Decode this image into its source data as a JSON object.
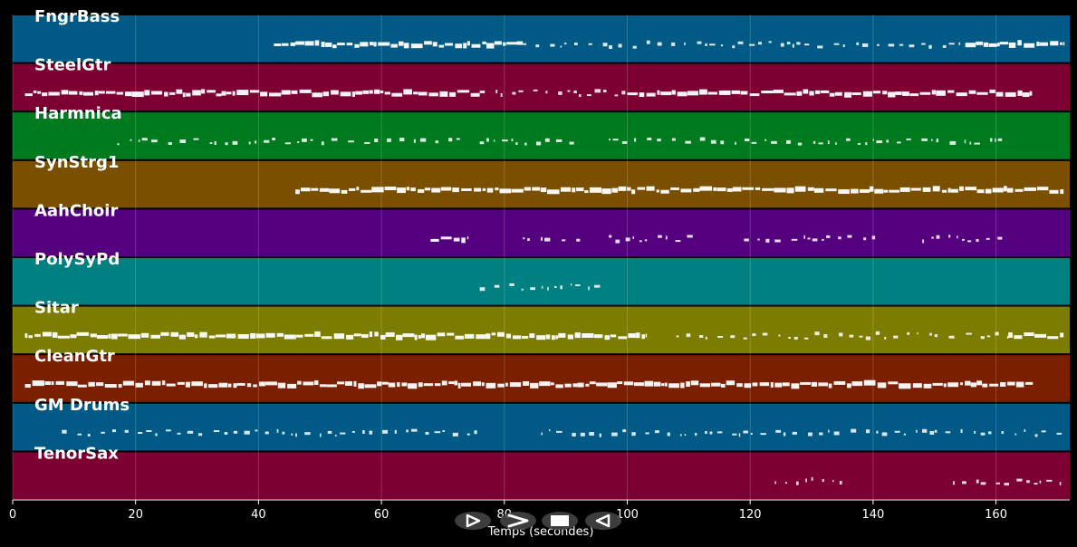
{
  "chart_data": {
    "type": "piano-roll",
    "xlabel": "Temps (secondes)",
    "xlim": [
      0,
      172
    ],
    "xticks": [
      0,
      20,
      40,
      60,
      80,
      100,
      120,
      140,
      160
    ],
    "grid": true,
    "tracks": [
      {
        "name": "FngrBass",
        "color": "#005a85",
        "segments": [
          [
            42.5,
            46,
            "dense"
          ],
          [
            46,
            83,
            "dense"
          ],
          [
            83,
            97,
            "sparse"
          ],
          [
            97,
            118,
            "sparse"
          ],
          [
            118,
            155,
            "sparse"
          ],
          [
            155,
            171,
            "dense"
          ]
        ]
      },
      {
        "name": "SteelGtr",
        "color": "#7d0033",
        "segments": [
          [
            2,
            76,
            "dense"
          ],
          [
            76,
            100,
            "sparse"
          ],
          [
            100,
            160,
            "dense"
          ],
          [
            160,
            166,
            "dense"
          ]
        ]
      },
      {
        "name": "Harmnica",
        "color": "#007a1e",
        "segments": [
          [
            17,
            74,
            "sparse"
          ],
          [
            76,
            92,
            "sparse"
          ],
          [
            97,
            161,
            "sparse"
          ]
        ]
      },
      {
        "name": "SynStrg1",
        "color": "#7a5000",
        "segments": [
          [
            46,
            171,
            "dense"
          ]
        ]
      },
      {
        "name": "AahChoir",
        "color": "#55007f",
        "segments": [
          [
            68,
            74,
            "dense"
          ],
          [
            83,
            93,
            "sparse"
          ],
          [
            97,
            111,
            "sparse"
          ],
          [
            119,
            141,
            "sparse"
          ],
          [
            148,
            161,
            "sparse"
          ]
        ]
      },
      {
        "name": "PolySyPd",
        "color": "#008080",
        "segments": [
          [
            76,
            96,
            "sparse"
          ]
        ]
      },
      {
        "name": "Sitar",
        "color": "#7c7c00",
        "segments": [
          [
            2,
            103,
            "dense"
          ],
          [
            108,
            150,
            "sparse"
          ],
          [
            150,
            162,
            "sparse"
          ],
          [
            162,
            171,
            "dense"
          ]
        ]
      },
      {
        "name": "CleanGtr",
        "color": "#7a2000",
        "segments": [
          [
            2,
            166,
            "dense"
          ]
        ]
      },
      {
        "name": "GM Drums",
        "color": "#005a85",
        "segments": [
          [
            8,
            76,
            "sparse"
          ],
          [
            86,
            150,
            "sparse"
          ],
          [
            150,
            171,
            "sparse"
          ]
        ]
      },
      {
        "name": "TenorSax",
        "color": "#7d0033",
        "segments": [
          [
            124,
            135,
            "sparse"
          ],
          [
            153,
            171,
            "sparse"
          ]
        ]
      }
    ]
  },
  "controls": [
    {
      "name": "play-icon",
      "symbol": "▷"
    },
    {
      "name": "fast-forward-icon",
      "symbol": ">"
    },
    {
      "name": "stop-icon",
      "symbol": "■"
    },
    {
      "name": "rewind-icon",
      "symbol": "◁"
    }
  ]
}
